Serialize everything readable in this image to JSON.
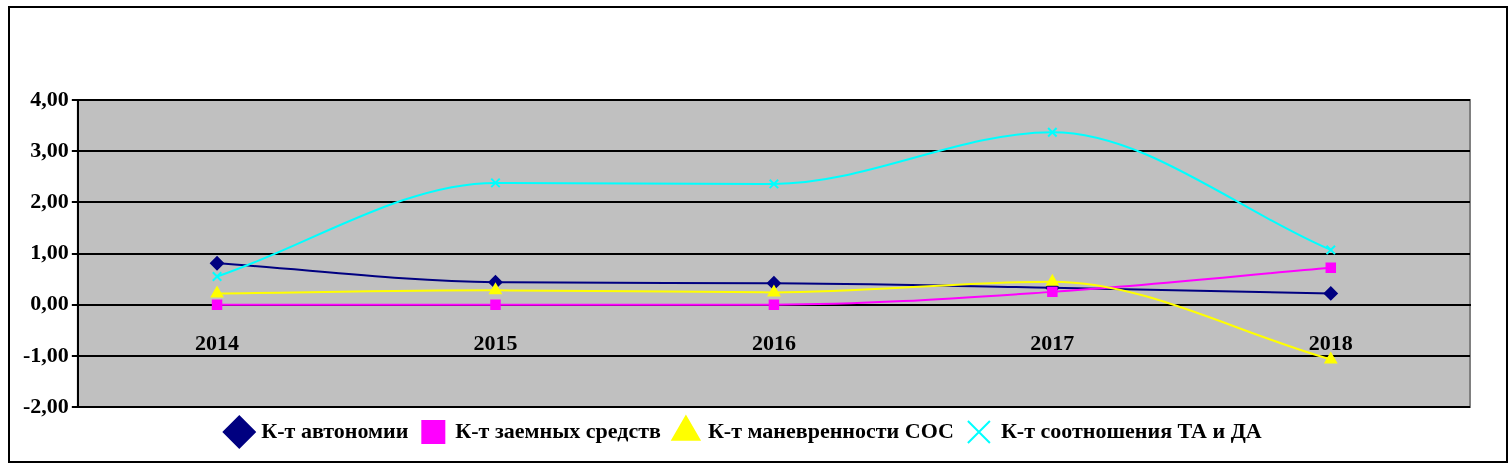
{
  "chart_data": {
    "type": "line",
    "categories": [
      "2014",
      "2015",
      "2016",
      "2017",
      "2018"
    ],
    "series": [
      {
        "name": "К-т автономии",
        "color": "#000080",
        "marker": "diamond",
        "values": [
          0.81,
          0.44,
          0.42,
          0.33,
          0.22
        ]
      },
      {
        "name": "К-т заемных средств",
        "color": "#ff00ff",
        "marker": "square",
        "values": [
          0,
          0,
          0,
          0.25,
          0.72
        ]
      },
      {
        "name": "К-т маневренности СОС",
        "color": "#ffff00",
        "marker": "triangle",
        "values": [
          0.22,
          0.28,
          0.24,
          0.45,
          -1.07
        ]
      },
      {
        "name": "К-т соотношения ТА и ДА",
        "color": "#00ffff",
        "marker": "cross",
        "values": [
          0.55,
          2.38,
          2.36,
          3.37,
          1.07
        ]
      }
    ],
    "ylim": [
      -2,
      4
    ],
    "yticks": [
      {
        "value": -2,
        "label": "-2,00"
      },
      {
        "value": -1,
        "label": "-1,00"
      },
      {
        "value": 0,
        "label": "0,00"
      },
      {
        "value": 1,
        "label": "1,00"
      },
      {
        "value": 2,
        "label": "2,00"
      },
      {
        "value": 3,
        "label": "3,00"
      },
      {
        "value": 4,
        "label": "4,00"
      }
    ],
    "grid": "y",
    "legend": "bottom",
    "line_style": "solid"
  }
}
